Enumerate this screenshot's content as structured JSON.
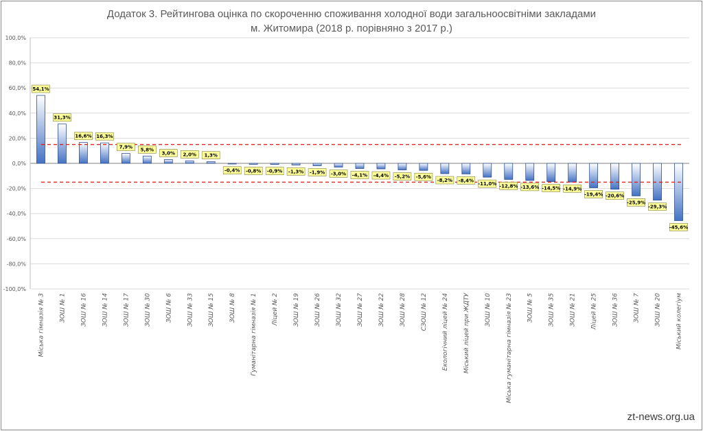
{
  "title_line1": "Додаток 3. Рейтингова оцінка по скороченню споживання холодної води загальноосвітніми закладами",
  "title_line2": "м. Житомира (2018 р. порівняно з 2017 р.)",
  "watermark": "zt-news.org.ua",
  "colors": {
    "bar_top": "#ffffff",
    "bar_bottom": "#4472c4",
    "bar_stroke": "#2f4f8f",
    "threshold_line": "#e0201b",
    "label_fill": "#ffff99",
    "label_stroke": "#7f7f3f",
    "grid": "#d9d9d9"
  },
  "chart_data": {
    "type": "bar",
    "ylim": [
      -100,
      100
    ],
    "ytick_values": [
      100,
      80,
      60,
      40,
      20,
      0,
      -20,
      -40,
      -60,
      -80,
      -100
    ],
    "ytick_labels": [
      "100,0%",
      "80,0%",
      "60,0%",
      "40,0%",
      "20,0%",
      "0,0%",
      "-20,0%",
      "-40,0%",
      "-60,0%",
      "-80,0%",
      "-100,0%"
    ],
    "grid": true,
    "reference_lines": [
      15,
      -15
    ],
    "categories": [
      "Міська гімназія № 3",
      "ЗОШ № 1",
      "ЗОШ № 16",
      "ЗОШ № 14",
      "ЗОШ № 17",
      "ЗОШ № 30",
      "ЗОШ № 6",
      "ЗОШ № 33",
      "ЗОШ № 15",
      "ЗОШ № 8",
      "Гуманітарна гімназія № 1",
      "Ліцей № 2",
      "ЗОШ № 19",
      "ЗОШ № 26",
      "ЗОШ № 32",
      "ЗОШ № 27",
      "ЗОШ № 22",
      "ЗОШ № 28",
      "СЗОШ № 12",
      "Екологічний ліцей № 24",
      "Міський ліцей при ЖДТУ",
      "ЗОШ № 10",
      "Міська гуманітарна гімназія № 23",
      "ЗОШ № 5",
      "ЗОШ № 35",
      "ЗОШ № 21",
      "Ліцей № 25",
      "ЗОШ № 36",
      "ЗОШ № 7",
      "ЗОШ № 20",
      "Міський колегіум"
    ],
    "values": [
      54.1,
      31.3,
      16.6,
      16.3,
      7.9,
      5.8,
      3.0,
      2.0,
      1.3,
      -0.4,
      -0.8,
      -0.9,
      -1.3,
      -1.9,
      -3.0,
      -4.1,
      -4.4,
      -5.2,
      -5.6,
      -8.2,
      -8.4,
      -11.0,
      -12.8,
      -13.6,
      -14.5,
      -14.9,
      -19.4,
      -20.6,
      -25.9,
      -29.3,
      -45.6
    ],
    "data_labels": [
      "54,1%",
      "31,3%",
      "16,6%",
      "16,3%",
      "7,9%",
      "5,8%",
      "3,0%",
      "2,0%",
      "1,3%",
      "-0,4%",
      "-0,8%",
      "-0,9%",
      "-1,3%",
      "-1,9%",
      "-3,0%",
      "-4,1%",
      "-4,4%",
      "-5,2%",
      "-5,6%",
      "-8,2%",
      "-8,4%",
      "-11,0%",
      "-12,8%",
      "-13,6%",
      "-14,5%",
      "-14,9%",
      "-19,4%",
      "-20,6%",
      "-25,9%",
      "-29,3%",
      "-45,6%"
    ]
  }
}
